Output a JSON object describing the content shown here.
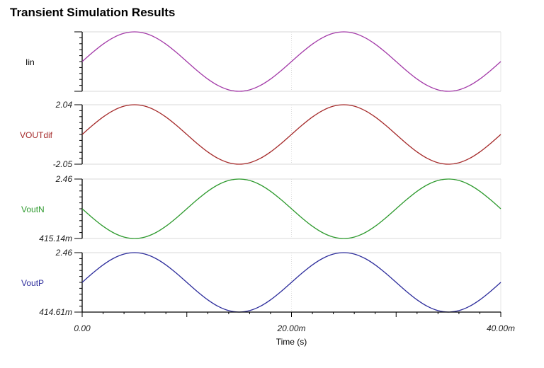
{
  "chart_data": {
    "type": "line",
    "title": "Transient Simulation Results",
    "xlabel": "Time (s)",
    "x_unit_scale": "m",
    "xlim": [
      0,
      40
    ],
    "x_tick_labels": [
      "0.00",
      "20.00m",
      "40.00m"
    ],
    "grid": "panel top/bottom lines, dotted vertical at 20.00m",
    "x": [
      0,
      1,
      2,
      3,
      4,
      5,
      6,
      7,
      8,
      9,
      10,
      11,
      12,
      13,
      14,
      15,
      16,
      17,
      18,
      19,
      20,
      21,
      22,
      23,
      24,
      25,
      26,
      27,
      28,
      29,
      30,
      31,
      32,
      33,
      34,
      35,
      36,
      37,
      38,
      39,
      40
    ],
    "series": [
      {
        "name": "Iin",
        "color": "#a33aa8",
        "ylim": [
          -1,
          1
        ],
        "y_tick_labels": [
          "",
          ""
        ],
        "values": [
          0,
          0.309,
          0.588,
          0.809,
          0.951,
          1,
          0.951,
          0.809,
          0.588,
          0.309,
          0,
          -0.309,
          -0.588,
          -0.809,
          -0.951,
          -1,
          -0.951,
          -0.809,
          -0.588,
          -0.309,
          0,
          0.309,
          0.588,
          0.809,
          0.951,
          1,
          0.951,
          0.809,
          0.588,
          0.309,
          0,
          -0.309,
          -0.588,
          -0.809,
          -0.951,
          -1,
          -0.951,
          -0.809,
          -0.588,
          -0.309,
          0
        ]
      },
      {
        "name": "VOUTdif",
        "color": "#a52a2a",
        "ylim": [
          -2.05,
          2.04
        ],
        "y_tick_labels": [
          "2.04",
          "-2.05"
        ],
        "values": [
          -0.005,
          0.627,
          1.197,
          1.649,
          1.94,
          2.04,
          1.94,
          1.649,
          1.197,
          0.627,
          -0.005,
          -0.637,
          -1.207,
          -1.659,
          -1.95,
          -2.05,
          -1.95,
          -1.659,
          -1.207,
          -0.637,
          -0.005,
          0.627,
          1.197,
          1.649,
          1.94,
          2.04,
          1.94,
          1.649,
          1.197,
          0.627,
          -0.005,
          -0.637,
          -1.207,
          -1.659,
          -1.95,
          -2.05,
          -1.95,
          -1.659,
          -1.207,
          -0.637,
          -0.005
        ]
      },
      {
        "name": "VoutN",
        "color": "#2e9a2e",
        "ylim": [
          0.41514,
          2.46
        ],
        "y_tick_labels": [
          "2.46",
          "415.14m"
        ],
        "values": [
          1.438,
          1.122,
          0.836,
          0.61,
          0.465,
          0.415,
          0.465,
          0.61,
          0.836,
          1.122,
          1.438,
          1.753,
          2.039,
          2.265,
          2.41,
          2.46,
          2.41,
          2.265,
          2.039,
          1.753,
          1.438,
          1.122,
          0.836,
          0.61,
          0.465,
          0.415,
          0.465,
          0.61,
          0.836,
          1.122,
          1.438,
          1.753,
          2.039,
          2.265,
          2.41,
          2.46,
          2.41,
          2.265,
          2.039,
          1.753,
          1.438
        ]
      },
      {
        "name": "VoutP",
        "color": "#2d2d9c",
        "ylim": [
          0.41461,
          2.46
        ],
        "y_tick_labels": [
          "2.46",
          "414.61m"
        ],
        "values": [
          1.437,
          1.753,
          2.039,
          2.265,
          2.41,
          2.46,
          2.41,
          2.265,
          2.039,
          1.753,
          1.437,
          1.121,
          0.836,
          0.61,
          0.465,
          0.415,
          0.465,
          0.61,
          0.836,
          1.121,
          1.437,
          1.753,
          2.039,
          2.265,
          2.41,
          2.46,
          2.41,
          2.265,
          2.039,
          1.753,
          1.437,
          1.121,
          0.836,
          0.61,
          0.465,
          0.415,
          0.465,
          0.61,
          0.836,
          1.121,
          1.437
        ]
      }
    ]
  }
}
